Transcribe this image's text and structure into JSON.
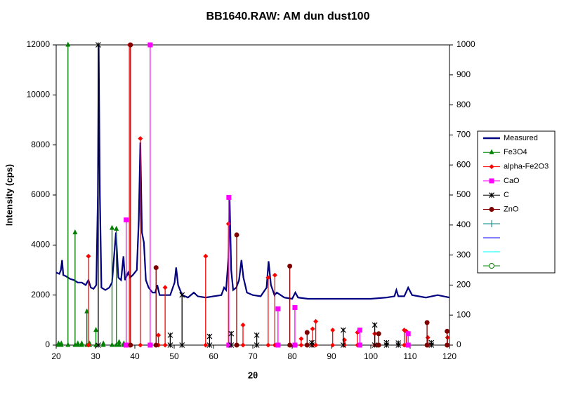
{
  "chart_data": {
    "type": "xrd",
    "title": "BB1640.RAW:  AM dun dust100",
    "x_label": "2θ",
    "y_label": "Intensity (cps)",
    "xlim": [
      20,
      120
    ],
    "xticks": [
      20,
      30,
      40,
      50,
      60,
      70,
      80,
      90,
      100,
      110,
      120
    ],
    "ylim": [
      0,
      12000
    ],
    "yticks": [
      0,
      2000,
      4000,
      6000,
      8000,
      10000,
      12000
    ],
    "y2lim": [
      0,
      1000
    ],
    "y2ticks": [
      0,
      100,
      200,
      300,
      400,
      500,
      600,
      700,
      800,
      900,
      1000
    ],
    "series": [
      {
        "name": "Measured",
        "color": "#000080",
        "marker": "line",
        "x": [
          20,
          20.8,
          21.2,
          21.5,
          21.8,
          22.5,
          23.5,
          24.5,
          25.5,
          26.5,
          27.5,
          28.2,
          28.8,
          29.5,
          30.2,
          30.6,
          30.8,
          31.1,
          31.5,
          32.5,
          33.5,
          34.2,
          35.2,
          35.8,
          36.5,
          37.1,
          37.5,
          38.3,
          38.8,
          39.5,
          40.5,
          41,
          41.4,
          41.8,
          42.3,
          42.8,
          43.5,
          44.5,
          45.2,
          45.7,
          46.3,
          47.5,
          49,
          50.1,
          50.5,
          51,
          52,
          53.5,
          55,
          56,
          58,
          60,
          62,
          62.7,
          63.2,
          63.8,
          64.1,
          64.5,
          65,
          65.8,
          66.5,
          67.1,
          67.6,
          68.5,
          70,
          72,
          73.5,
          74,
          74.6,
          75.5,
          76.1,
          78,
          80,
          80.8,
          81.5,
          84,
          88,
          92,
          96,
          100,
          104,
          106,
          106.5,
          107,
          108.5,
          109.5,
          110.5,
          114,
          117,
          120
        ],
        "values": [
          2900,
          2850,
          3000,
          3400,
          2800,
          2750,
          2650,
          2600,
          2500,
          2500,
          2400,
          2600,
          2300,
          2250,
          2400,
          6000,
          12000,
          6000,
          2300,
          2200,
          2300,
          2500,
          4500,
          2700,
          2600,
          3550,
          2600,
          2900,
          2700,
          2800,
          3000,
          5000,
          8100,
          4500,
          4100,
          2600,
          2300,
          2100,
          2100,
          2400,
          2000,
          2000,
          2000,
          2500,
          3100,
          2400,
          2000,
          1900,
          2100,
          1950,
          1900,
          1950,
          2000,
          2300,
          2200,
          3500,
          5800,
          3000,
          2200,
          2300,
          2600,
          3400,
          2700,
          2100,
          2000,
          1950,
          2300,
          3350,
          2400,
          2000,
          2100,
          1900,
          1850,
          2100,
          1900,
          1850,
          1850,
          1850,
          1850,
          1850,
          1900,
          1950,
          2200,
          1950,
          1950,
          2300,
          2000,
          1900,
          2000,
          1900
        ]
      },
      {
        "name": "Fe3O4",
        "color": "#008000",
        "marker": "triangle",
        "axis": "y2",
        "x": [
          20.6,
          21.3,
          23,
          24.8,
          25.5,
          26.5,
          27.8,
          28.5,
          30.1,
          32,
          34.2,
          35.3,
          36,
          37.2
        ],
        "values": [
          5,
          5,
          1000,
          375,
          5,
          5,
          112,
          5,
          50,
          5,
          390,
          387,
          10,
          5
        ]
      },
      {
        "name": "alpha-Fe2O3",
        "color": "#ff0000",
        "marker": "diamond",
        "axis": "y2",
        "x": [
          28.2,
          38.6,
          41.4,
          46,
          47.7,
          58,
          63.8,
          67.5,
          73.9,
          75.6,
          82.3,
          85.2,
          86,
          90.3,
          93.3,
          96.6,
          101,
          108.5,
          109,
          114.5,
          119.5
        ],
        "values": [
          296,
          1000,
          688,
          33,
          192,
          296,
          404,
          67,
          225,
          233,
          21,
          54,
          79,
          50,
          17,
          42,
          38,
          50,
          46,
          25,
          25
        ]
      },
      {
        "name": "CaO",
        "color": "#ff00ff",
        "marker": "square",
        "axis": "y2",
        "x": [
          37.8,
          43.9,
          63.9,
          76.4,
          80.7,
          97.2,
          109.5
        ],
        "values": [
          417,
          1000,
          492,
          121,
          125,
          50,
          38
        ]
      },
      {
        "name": "C",
        "color": "#000000",
        "marker": "asterisk",
        "axis": "y2",
        "x": [
          30.7,
          49,
          52,
          59,
          64.5,
          71,
          85,
          93,
          101,
          104,
          107,
          115.4
        ],
        "values": [
          1000,
          33,
          167,
          29,
          38,
          33,
          8,
          50,
          67,
          8,
          7,
          8
        ]
      },
      {
        "name": "ZnO",
        "color": "#800000",
        "marker": "circle",
        "axis": "y2",
        "x": [
          38.9,
          45.4,
          65.9,
          79.4,
          83.8,
          102,
          114.3,
          119.4
        ],
        "values": [
          1000,
          258,
          367,
          263,
          42,
          38,
          75,
          46
        ]
      }
    ]
  }
}
